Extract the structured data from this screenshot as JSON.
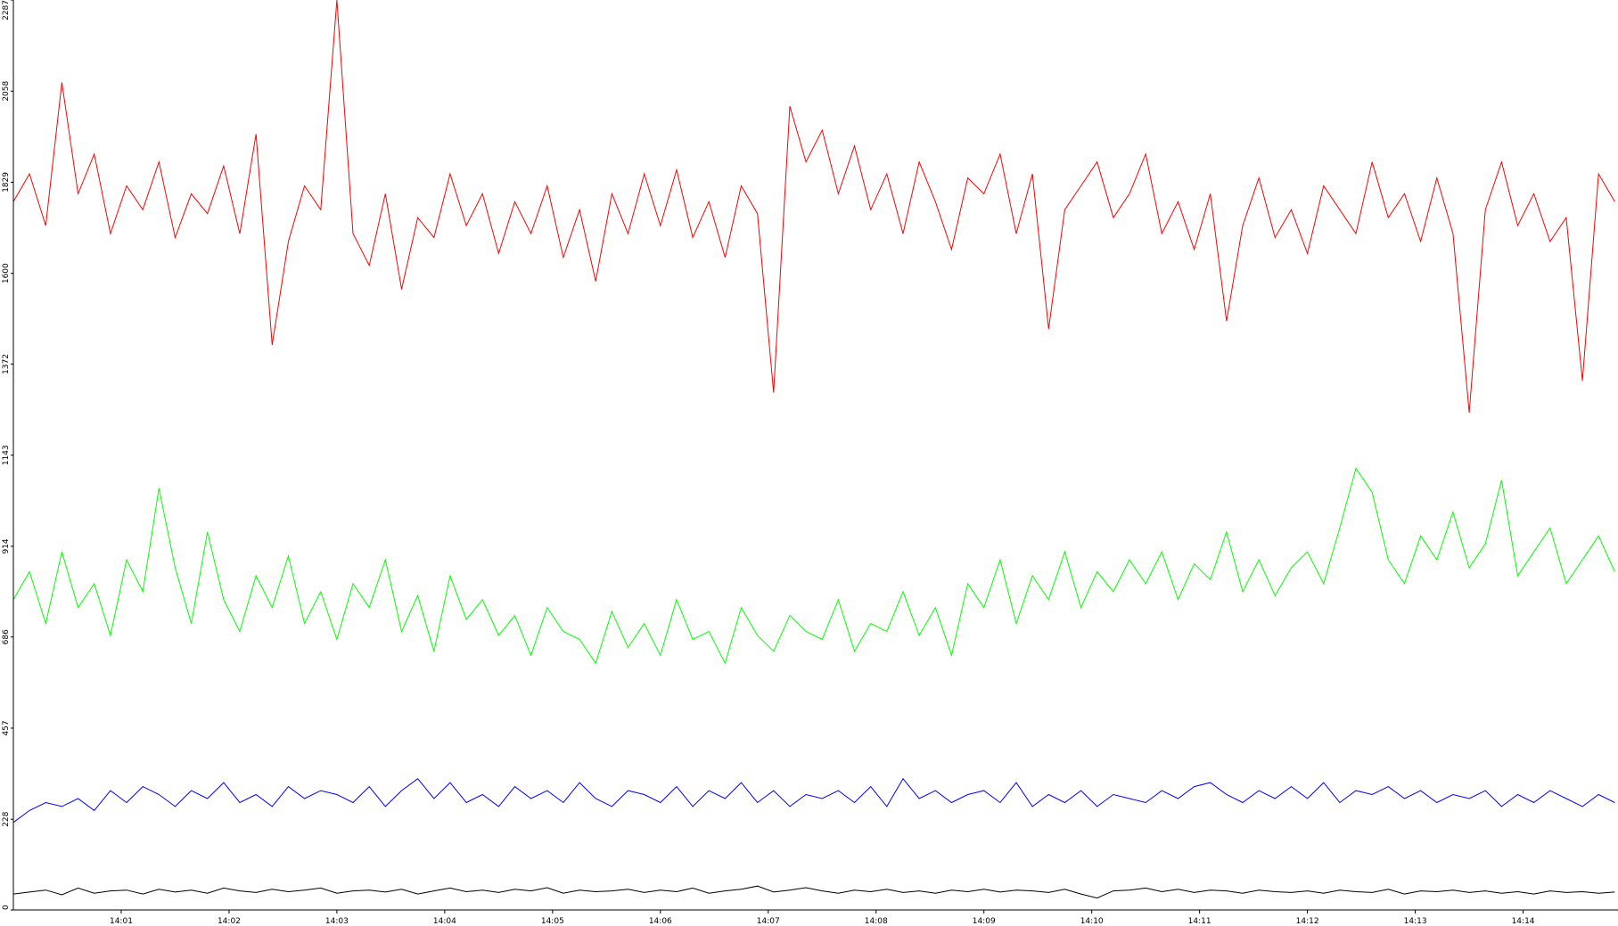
{
  "chart_data": {
    "type": "line",
    "x": [
      0,
      0.15,
      0.3,
      0.45,
      0.6,
      0.75,
      0.9,
      1.05,
      1.2,
      1.35,
      1.5,
      1.65,
      1.8,
      1.95,
      2.1,
      2.25,
      2.4,
      2.55,
      2.7,
      2.85,
      3,
      3.15,
      3.3,
      3.45,
      3.6,
      3.75,
      3.9,
      4.05,
      4.2,
      4.35,
      4.5,
      4.65,
      4.8,
      4.95,
      5.1,
      5.25,
      5.4,
      5.55,
      5.7,
      5.85,
      6,
      6.15,
      6.3,
      6.45,
      6.6,
      6.75,
      6.9,
      7.05,
      7.2,
      7.35,
      7.5,
      7.65,
      7.8,
      7.95,
      8.1,
      8.25,
      8.4,
      8.55,
      8.7,
      8.85,
      9,
      9.15,
      9.3,
      9.45,
      9.6,
      9.75,
      9.9,
      10.05,
      10.2,
      10.35,
      10.5,
      10.65,
      10.8,
      10.95,
      11.1,
      11.25,
      11.4,
      11.55,
      11.7,
      11.85,
      12,
      12.15,
      12.3,
      12.45,
      12.6,
      12.75,
      12.9,
      13.05,
      13.2,
      13.35,
      13.5,
      13.65,
      13.8,
      13.95,
      14.1,
      14.25,
      14.4,
      14.55,
      14.7,
      14.85
    ],
    "series": [
      {
        "color": "#ff0000",
        "values": [
          1780,
          1850,
          1720,
          2080,
          1800,
          1900,
          1700,
          1820,
          1760,
          1880,
          1690,
          1800,
          1750,
          1870,
          1700,
          1950,
          1420,
          1680,
          1820,
          1760,
          2287,
          1700,
          1620,
          1800,
          1560,
          1740,
          1690,
          1850,
          1720,
          1800,
          1650,
          1780,
          1700,
          1820,
          1640,
          1760,
          1580,
          1800,
          1700,
          1850,
          1720,
          1860,
          1690,
          1780,
          1640,
          1820,
          1750,
          1300,
          2020,
          1880,
          1960,
          1800,
          1920,
          1760,
          1850,
          1700,
          1880,
          1780,
          1660,
          1840,
          1800,
          1900,
          1700,
          1850,
          1460,
          1760,
          1820,
          1880,
          1740,
          1800,
          1900,
          1700,
          1780,
          1660,
          1800,
          1480,
          1720,
          1840,
          1690,
          1760,
          1650,
          1820,
          1760,
          1700,
          1880,
          1740,
          1800,
          1680,
          1840,
          1700,
          1250,
          1760,
          1880,
          1720,
          1800,
          1680,
          1740,
          1330,
          1850,
          1780
        ]
      },
      {
        "color": "#00ff00",
        "values": [
          780,
          850,
          720,
          900,
          760,
          820,
          690,
          880,
          800,
          1060,
          860,
          720,
          950,
          780,
          700,
          840,
          760,
          890,
          720,
          800,
          680,
          820,
          760,
          880,
          700,
          790,
          650,
          840,
          730,
          780,
          690,
          740,
          640,
          760,
          700,
          680,
          620,
          750,
          660,
          720,
          640,
          780,
          680,
          700,
          620,
          760,
          690,
          650,
          740,
          700,
          680,
          780,
          650,
          720,
          700,
          800,
          690,
          760,
          640,
          820,
          760,
          880,
          720,
          840,
          780,
          900,
          760,
          850,
          800,
          880,
          820,
          900,
          780,
          870,
          830,
          950,
          800,
          880,
          790,
          860,
          900,
          820,
          960,
          1110,
          1050,
          880,
          820,
          940,
          880,
          1000,
          860,
          920,
          1080,
          840,
          900,
          960,
          820,
          880,
          940,
          850
        ]
      },
      {
        "color": "#0000ff",
        "values": [
          220,
          250,
          270,
          260,
          280,
          250,
          300,
          270,
          310,
          290,
          260,
          300,
          280,
          320,
          270,
          290,
          260,
          310,
          280,
          300,
          290,
          270,
          310,
          260,
          300,
          330,
          280,
          320,
          270,
          290,
          260,
          310,
          280,
          300,
          270,
          320,
          280,
          260,
          300,
          290,
          270,
          310,
          260,
          300,
          280,
          320,
          270,
          300,
          260,
          290,
          280,
          300,
          270,
          310,
          260,
          330,
          280,
          300,
          270,
          290,
          300,
          270,
          320,
          260,
          290,
          270,
          300,
          260,
          290,
          280,
          270,
          300,
          280,
          310,
          320,
          290,
          270,
          300,
          280,
          310,
          280,
          320,
          270,
          300,
          290,
          310,
          280,
          300,
          270,
          290,
          280,
          300,
          260,
          290,
          270,
          300,
          280,
          260,
          290,
          270
        ]
      },
      {
        "color": "#000000",
        "values": [
          40,
          45,
          50,
          38,
          55,
          42,
          48,
          50,
          40,
          52,
          45,
          50,
          42,
          55,
          48,
          44,
          52,
          46,
          50,
          55,
          42,
          48,
          50,
          45,
          52,
          40,
          48,
          55,
          46,
          50,
          44,
          52,
          48,
          56,
          42,
          50,
          46,
          48,
          52,
          44,
          50,
          46,
          55,
          42,
          48,
          52,
          60,
          45,
          50,
          56,
          48,
          42,
          50,
          46,
          52,
          44,
          48,
          42,
          50,
          46,
          52,
          45,
          50,
          48,
          44,
          52,
          40,
          30,
          48,
          50,
          55,
          46,
          52,
          44,
          50,
          48,
          42,
          50,
          46,
          44,
          48,
          42,
          50,
          46,
          44,
          52,
          40,
          48,
          46,
          50,
          44,
          48,
          42,
          46,
          40,
          48,
          44,
          46,
          42,
          45
        ]
      }
    ],
    "xlim": [
      0,
      14.88
    ],
    "xticks": [
      {
        "value": 1,
        "label": "14:01"
      },
      {
        "value": 2,
        "label": "14:02"
      },
      {
        "value": 3,
        "label": "14:03"
      },
      {
        "value": 4,
        "label": "14:04"
      },
      {
        "value": 5,
        "label": "14:05"
      },
      {
        "value": 6,
        "label": "14:06"
      },
      {
        "value": 7,
        "label": "14:07"
      },
      {
        "value": 8,
        "label": "14:08"
      },
      {
        "value": 9,
        "label": "14:09"
      },
      {
        "value": 10,
        "label": "14:10"
      },
      {
        "value": 11,
        "label": "14:11"
      },
      {
        "value": 12,
        "label": "14:12"
      },
      {
        "value": 13,
        "label": "14:13"
      },
      {
        "value": 14,
        "label": "14:14"
      }
    ],
    "ylim": [
      0,
      2287
    ],
    "yticks": [
      0,
      228,
      457,
      686,
      914,
      1143,
      1372,
      1600,
      1829,
      2058,
      2287
    ]
  }
}
